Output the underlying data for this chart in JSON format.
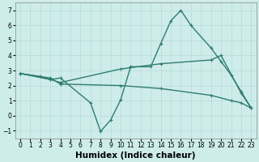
{
  "series": [
    {
      "x": [
        0,
        2,
        3,
        4,
        7,
        8,
        9,
        10,
        11,
        13,
        14,
        15,
        16,
        17,
        19,
        20,
        21,
        22,
        23
      ],
      "y": [
        2.8,
        2.6,
        2.4,
        2.5,
        0.85,
        -1.05,
        -0.3,
        1.05,
        3.25,
        3.25,
        4.8,
        6.3,
        7.0,
        6.0,
        4.5,
        3.6,
        2.7,
        1.6,
        0.5
      ]
    },
    {
      "x": [
        0,
        3,
        4,
        10,
        14,
        19,
        20,
        22,
        23
      ],
      "y": [
        2.8,
        2.4,
        2.2,
        3.1,
        3.45,
        3.7,
        4.0,
        1.5,
        0.5
      ]
    },
    {
      "x": [
        0,
        3,
        4,
        10,
        14,
        19,
        21,
        22,
        23
      ],
      "y": [
        2.8,
        2.5,
        2.1,
        2.0,
        1.8,
        1.35,
        1.0,
        0.85,
        0.5
      ]
    }
  ],
  "line_color": "#2e7d6e",
  "linewidth": 1.0,
  "marker": "+",
  "markersize": 2.5,
  "markeredgewidth": 0.8,
  "xlabel": "Humidex (Indice chaleur)",
  "xlim": [
    -0.5,
    23.5
  ],
  "ylim": [
    -1.5,
    7.5
  ],
  "xticks": [
    0,
    1,
    2,
    3,
    4,
    5,
    6,
    7,
    8,
    9,
    10,
    11,
    12,
    13,
    14,
    15,
    16,
    17,
    18,
    19,
    20,
    21,
    22,
    23
  ],
  "yticks": [
    -1,
    0,
    1,
    2,
    3,
    4,
    5,
    6,
    7
  ],
  "background_color": "#ceecea",
  "grid_color": "#b0d8d4",
  "tick_fontsize": 5.5,
  "xlabel_fontsize": 7.5,
  "xlabel_fontweight": "bold"
}
